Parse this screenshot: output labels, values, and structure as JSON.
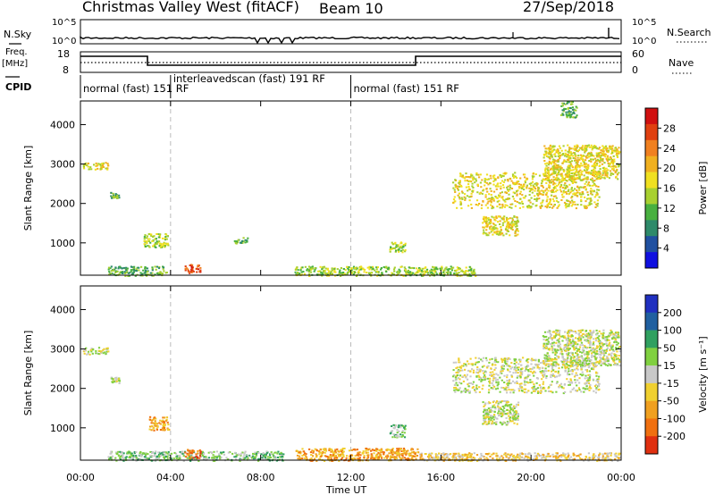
{
  "header": {
    "title": "Christmas Valley West (fitACF)",
    "beam": "Beam 10",
    "date": "27/Sep/2018"
  },
  "nsky_panel": {
    "left_label": "N.Sky",
    "right_label": "N.Search",
    "left_ticks": [
      "10^5",
      "10^0"
    ],
    "right_ticks": [
      "10^5",
      "10^0"
    ]
  },
  "freq_panel": {
    "left_label_top": "Freq.",
    "left_label_unit": "[MHz]",
    "right_label": "Nave",
    "left_ticks": [
      "18",
      "8"
    ],
    "right_ticks": [
      "60",
      "0"
    ]
  },
  "cpid": {
    "label": "CPID",
    "segments": [
      {
        "start_hour": 0,
        "text": "normal (fast) 151 RF"
      },
      {
        "start_hour": 4.0,
        "text": "interleavedscan (fast) 191 RF"
      },
      {
        "start_hour": 12.0,
        "text": "normal (fast) 151 RF"
      }
    ]
  },
  "time_axis": {
    "label": "Time UT",
    "ticks": [
      "00:00",
      "04:00",
      "08:00",
      "12:00",
      "16:00",
      "20:00",
      "00:00"
    ]
  },
  "chart_data": [
    {
      "type": "heatmap",
      "name": "power",
      "ylabel": "Slant Range [km]",
      "xlim_hours": [
        0,
        24
      ],
      "ylim_km": [
        180,
        4600
      ],
      "yticks": [
        "1000",
        "2000",
        "3000",
        "4000"
      ],
      "colorbar": {
        "label": "Power [dB]",
        "tick_labels": [
          "4",
          "8",
          "12",
          "16",
          "20",
          "24",
          "28"
        ],
        "colors": [
          "#1010e0",
          "#2050a0",
          "#2e8a6a",
          "#48b040",
          "#a8d030",
          "#f0e020",
          "#f0b020",
          "#f08020",
          "#e04010",
          "#d01010"
        ]
      },
      "regions": [
        {
          "t": [
            0.1,
            1.2
          ],
          "r": [
            2880,
            3060
          ],
          "level": 5
        },
        {
          "t": [
            1.3,
            1.7
          ],
          "r": [
            2150,
            2300
          ],
          "level": 3
        },
        {
          "t": [
            1.2,
            3.8
          ],
          "r": [
            180,
            420
          ],
          "level": 3
        },
        {
          "t": [
            2.8,
            3.9
          ],
          "r": [
            900,
            1250
          ],
          "level": 4
        },
        {
          "t": [
            4.6,
            5.3
          ],
          "r": [
            250,
            480
          ],
          "level": 8
        },
        {
          "t": [
            6.8,
            7.4
          ],
          "r": [
            1000,
            1150
          ],
          "level": 3
        },
        {
          "t": [
            9.5,
            17.5
          ],
          "r": [
            180,
            420
          ],
          "level": 4
        },
        {
          "t": [
            13.7,
            14.4
          ],
          "r": [
            780,
            1050
          ],
          "level": 4
        },
        {
          "t": [
            17.8,
            19.4
          ],
          "r": [
            1200,
            1700
          ],
          "level": 5
        },
        {
          "t": [
            16.5,
            23.0
          ],
          "r": [
            1900,
            2800
          ],
          "level": 5
        },
        {
          "t": [
            20.5,
            23.9
          ],
          "r": [
            2600,
            3500
          ],
          "level": 5
        },
        {
          "t": [
            21.3,
            22.0
          ],
          "r": [
            4200,
            4600
          ],
          "level": 3
        }
      ]
    },
    {
      "type": "heatmap",
      "name": "velocity",
      "ylabel": "Slant Range [km]",
      "xlim_hours": [
        0,
        24
      ],
      "ylim_km": [
        180,
        4600
      ],
      "yticks": [
        "1000",
        "2000",
        "3000",
        "4000"
      ],
      "colorbar": {
        "label": "Velocity [m s⁻¹]",
        "tick_labels": [
          "200",
          "100",
          "50",
          "15",
          "-15",
          "-50",
          "-100",
          "-200"
        ],
        "colors": [
          "#2030c0",
          "#2060a0",
          "#30a060",
          "#80d040",
          "#c8c8c8",
          "#f0d030",
          "#f0a020",
          "#f07010",
          "#e03010"
        ]
      },
      "regions": [
        {
          "t": [
            0.1,
            1.2
          ],
          "r": [
            2880,
            3060
          ],
          "level": 4
        },
        {
          "t": [
            1.3,
            1.7
          ],
          "r": [
            2150,
            2300
          ],
          "level": 4
        },
        {
          "t": [
            1.2,
            9.0
          ],
          "r": [
            180,
            420
          ],
          "level": 3
        },
        {
          "t": [
            3.0,
            3.9
          ],
          "r": [
            950,
            1300
          ],
          "level": 6
        },
        {
          "t": [
            4.6,
            5.3
          ],
          "r": [
            250,
            480
          ],
          "level": 7
        },
        {
          "t": [
            9.5,
            15.0
          ],
          "r": [
            180,
            500
          ],
          "level": 6
        },
        {
          "t": [
            15.0,
            23.9
          ],
          "r": [
            180,
            380
          ],
          "level": 5
        },
        {
          "t": [
            13.7,
            14.4
          ],
          "r": [
            780,
            1100
          ],
          "level": 3
        },
        {
          "t": [
            17.8,
            19.4
          ],
          "r": [
            1100,
            1700
          ],
          "level": 4
        },
        {
          "t": [
            16.5,
            23.0
          ],
          "r": [
            1900,
            2800
          ],
          "level": 4
        },
        {
          "t": [
            20.5,
            23.9
          ],
          "r": [
            2600,
            3500
          ],
          "level": 4
        }
      ]
    }
  ]
}
